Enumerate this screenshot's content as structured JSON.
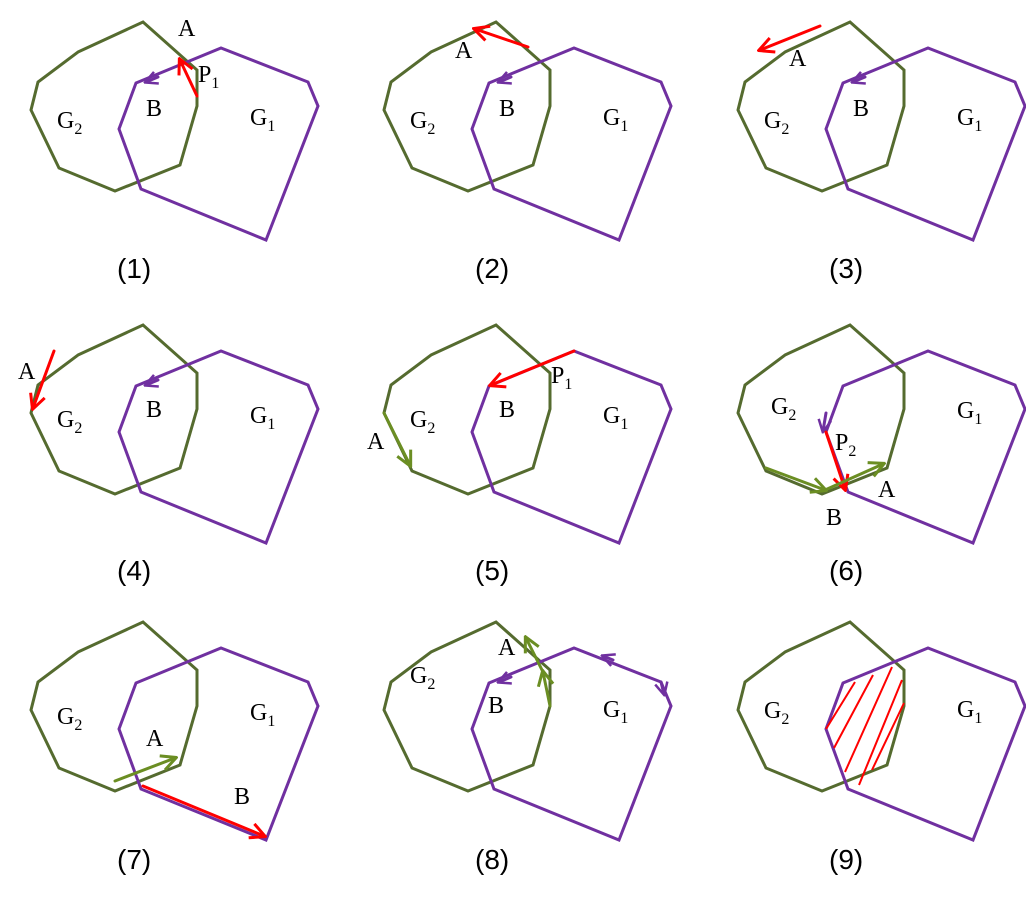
{
  "labels": {
    "g1_main": "G",
    "g1_sub": "1",
    "g2_main": "G",
    "g2_sub": "2",
    "a": "A",
    "b": "B",
    "p1_main": "P",
    "p1_sub": "1",
    "p2_main": "P",
    "p2_sub": "2"
  },
  "colors": {
    "octagon": "#556b2f",
    "pentagon": "#7030a0",
    "red_edge": "#ff0000",
    "green_edge": "#6b8e23"
  },
  "panels": [
    {
      "caption": "(1)"
    },
    {
      "caption": "(2)"
    },
    {
      "caption": "(3)"
    },
    {
      "caption": "(4)"
    },
    {
      "caption": "(5)"
    },
    {
      "caption": "(6)"
    },
    {
      "caption": "(7)"
    },
    {
      "caption": "(8)"
    },
    {
      "caption": "(9)"
    }
  ]
}
